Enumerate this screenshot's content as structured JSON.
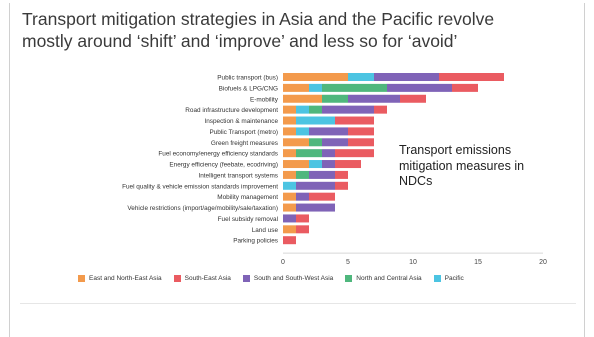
{
  "slide": {
    "title": "Transport mitigation strategies in Asia and the Pacific revolve\nmostly around ‘shift’ and ‘improve’ and less so for ‘avoid’",
    "annotation": "Transport emissions\nmitigation measures in\nNDCs"
  },
  "colors": {
    "East and North-East Asia": "#f39a4c",
    "South-East Asia": "#ea5b61",
    "South and South-West Asia": "#7f63b7",
    "North and Central Asia": "#4fb77d",
    "Pacific": "#4cc4e2"
  },
  "chart_data": {
    "type": "bar",
    "orientation": "horizontal",
    "stacked": true,
    "categories": [
      "Public transport (bus)",
      "Biofuels & LPG/CNG",
      "E-mobility",
      "Road infrastructure development",
      "Inspection & maintenance",
      "Public Transport (metro)",
      "Green freight measures",
      "Fuel economy/energy efficiency standards",
      "Energy efficiency (feebate, ecodriving)",
      "Intelligent transport systems",
      "Fuel quality & vehicle emission standards improvement",
      "Mobility management",
      "Vehicle restrictions (import/age/mobility/sale/taxation)",
      "Fuel subsidy removal",
      "Land use",
      "Parking policies"
    ],
    "series": [
      {
        "name": "East and North-East Asia",
        "values": [
          5,
          2,
          3,
          1,
          1,
          1,
          2,
          1,
          2,
          1,
          0,
          1,
          1,
          0,
          1,
          0
        ]
      },
      {
        "name": "Pacific",
        "values": [
          2,
          1,
          0,
          1,
          3,
          1,
          0,
          0,
          1,
          0,
          1,
          0,
          0,
          0,
          0,
          0
        ]
      },
      {
        "name": "North and Central Asia",
        "values": [
          0,
          5,
          2,
          1,
          0,
          0,
          1,
          2,
          0,
          1,
          0,
          0,
          0,
          0,
          0,
          0
        ]
      },
      {
        "name": "South and South-West Asia",
        "values": [
          5,
          5,
          4,
          4,
          0,
          3,
          2,
          1,
          1,
          2,
          3,
          1,
          3,
          1,
          0,
          0
        ]
      },
      {
        "name": "South-East Asia",
        "values": [
          5,
          2,
          2,
          1,
          3,
          2,
          2,
          3,
          2,
          1,
          1,
          2,
          0,
          1,
          1,
          1
        ]
      }
    ],
    "xlim": [
      0,
      20
    ],
    "xticks": [
      0,
      5,
      10,
      15,
      20
    ],
    "grid": false,
    "legend": {
      "position": "bottom",
      "entries": [
        "East and North-East Asia",
        "South-East Asia",
        "South and South-West Asia",
        "North and Central Asia",
        "Pacific"
      ]
    }
  }
}
